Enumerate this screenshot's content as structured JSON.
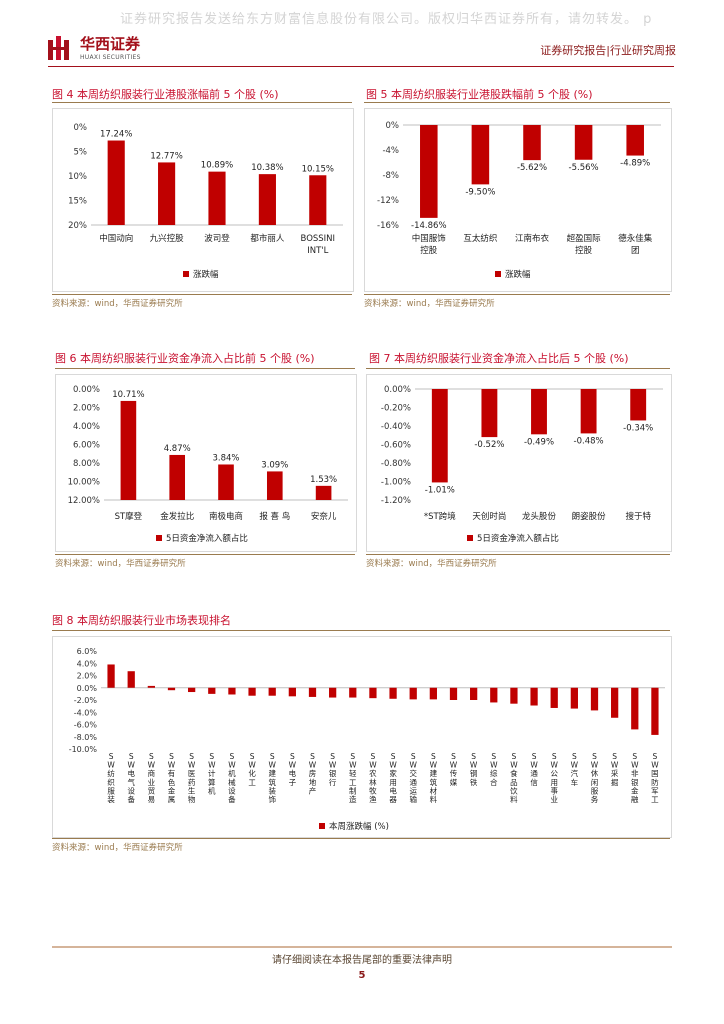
{
  "header": {
    "watermark": "证券研究报告发送给东方财富信息股份有限公司。版权归华西证券所有，请勿转发。 p",
    "logo_cn": "华西证券",
    "logo_en": "HUAXI SECURITIES",
    "report_type": "证券研究报告|行业研究周报"
  },
  "colors": {
    "bar": "#c00000",
    "title": "#c8102e",
    "source": "#9a7b4f"
  },
  "charts": {
    "fig4": {
      "title": "图 4 本周纺织服装行业港股涨幅前 5 个股 (%)",
      "source": "资料来源：wind，华西证券研究所",
      "chart_data": {
        "type": "bar",
        "categories": [
          "中国动向",
          "九兴控股",
          "波司登",
          "都市丽人",
          "BOSSINI INT'L"
        ],
        "values": [
          17.24,
          12.77,
          10.89,
          10.38,
          10.15
        ],
        "labels": [
          "17.24%",
          "12.77%",
          "10.89%",
          "10.38%",
          "10.15%"
        ],
        "ylim": [
          0,
          20
        ],
        "yticks": [
          "0%",
          "5%",
          "10%",
          "15%",
          "20%"
        ],
        "legend": "涨跌幅",
        "legend_position": "bottom"
      }
    },
    "fig5": {
      "title": "图 5 本周纺织服装行业港股跌幅前 5 个股 (%)",
      "source": "资料来源：wind，华西证券研究所",
      "chart_data": {
        "type": "bar",
        "categories": [
          "中国服饰控股",
          "互太纺织",
          "江南布衣",
          "超盈国际控股",
          "德永佳集团"
        ],
        "values": [
          -14.86,
          -9.5,
          -5.62,
          -5.56,
          -4.89
        ],
        "labels": [
          "-14.86%",
          "-9.50%",
          "-5.62%",
          "-5.56%",
          "-4.89%"
        ],
        "ylim": [
          -16,
          0
        ],
        "yticks": [
          "0%",
          "-4%",
          "-8%",
          "-12%",
          "-16%"
        ],
        "legend": "涨跌幅",
        "legend_position": "bottom"
      }
    },
    "fig6": {
      "title": "图 6 本周纺织服装行业资金净流入占比前 5 个股 (%)",
      "source": "资料来源：wind，华西证券研究所",
      "chart_data": {
        "type": "bar",
        "categories": [
          "ST摩登",
          "金发拉比",
          "南极电商",
          "报 喜 鸟",
          "安奈儿"
        ],
        "values": [
          10.71,
          4.87,
          3.84,
          3.09,
          1.53
        ],
        "labels": [
          "10.71%",
          "4.87%",
          "3.84%",
          "3.09%",
          "1.53%"
        ],
        "ylim": [
          0,
          12
        ],
        "yticks": [
          "0.00%",
          "2.00%",
          "4.00%",
          "6.00%",
          "8.00%",
          "10.00%",
          "12.00%"
        ],
        "legend": "5日资金净流入额占比",
        "legend_position": "bottom"
      }
    },
    "fig7": {
      "title": "图 7 本周纺织服装行业资金净流入占比后 5 个股 (%)",
      "source": "资料来源：wind，华西证券研究所",
      "chart_data": {
        "type": "bar",
        "categories": [
          "*ST跨境",
          "天创时尚",
          "龙头股份",
          "朗姿股份",
          "搜于特"
        ],
        "values": [
          -1.01,
          -0.52,
          -0.49,
          -0.48,
          -0.34
        ],
        "labels": [
          "-1.01%",
          "-0.52%",
          "-0.49%",
          "-0.48%",
          "-0.34%"
        ],
        "ylim": [
          -1.2,
          0
        ],
        "yticks": [
          "0.00%",
          "-0.20%",
          "-0.40%",
          "-0.60%",
          "-0.80%",
          "-1.00%",
          "-1.20%"
        ],
        "legend": "5日资金净流入额占比",
        "legend_position": "bottom"
      }
    },
    "fig8": {
      "title": "图 8 本周纺织服装行业市场表现排名",
      "source": "资料来源：wind，华西证券研究所",
      "chart_data": {
        "type": "bar",
        "categories": [
          "SW纺织服装",
          "SW电气设备",
          "SW商业贸易",
          "SW有色金属",
          "SW医药生物",
          "SW计算机",
          "SW机械设备",
          "SW化工",
          "SW建筑装饰",
          "SW电子",
          "SW房地产",
          "SW银行",
          "SW轻工制造",
          "SW农林牧渔",
          "SW家用电器",
          "SW交通运输",
          "SW建筑材料",
          "SW传媒",
          "SW钢铁",
          "SW综合",
          "SW食品饮料",
          "SW通信",
          "SW公用事业",
          "SW汽车",
          "SW休闲服务",
          "SW采掘",
          "SW非银金融",
          "SW国防军工"
        ],
        "values": [
          3.8,
          2.7,
          0.3,
          -0.4,
          -0.7,
          -1.0,
          -1.1,
          -1.3,
          -1.3,
          -1.4,
          -1.5,
          -1.6,
          -1.6,
          -1.7,
          -1.8,
          -1.9,
          -1.9,
          -2.0,
          -2.0,
          -2.4,
          -2.6,
          -2.9,
          -3.3,
          -3.4,
          -3.7,
          -4.9,
          -6.8,
          -7.7
        ],
        "ylim": [
          -10,
          6
        ],
        "yticks": [
          "6.0%",
          "4.0%",
          "2.0%",
          "0.0%",
          "-2.0%",
          "-4.0%",
          "-6.0%",
          "-8.0%",
          "-10.0%"
        ],
        "legend": "本周涨跌幅 (%)",
        "legend_position": "bottom"
      }
    }
  },
  "footer": {
    "disclaimer": "请仔细阅读在本报告尾部的重要法律声明",
    "page_number": "5"
  }
}
